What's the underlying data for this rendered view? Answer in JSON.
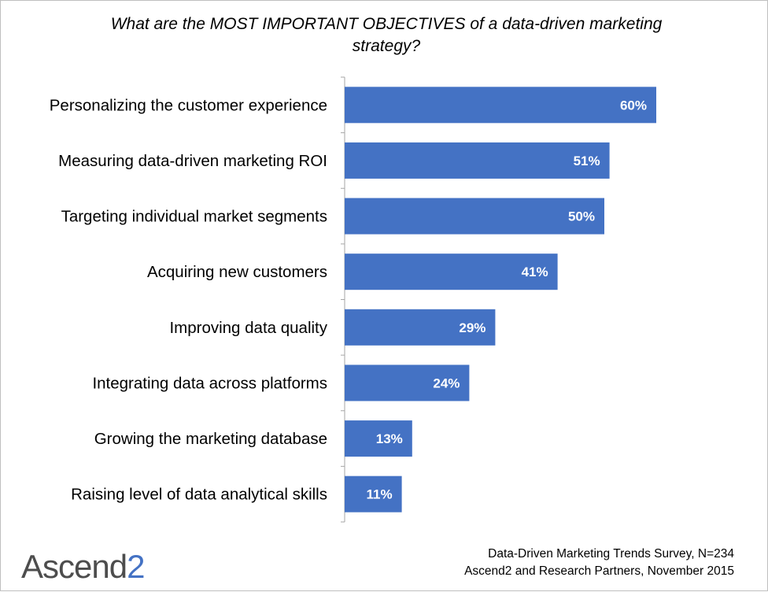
{
  "title": "What are the MOST IMPORTANT OBJECTIVES of a data-driven marketing strategy?",
  "source": {
    "line1": "Data-Driven Marketing Trends Survey, N=234",
    "line2": "Ascend2 and Research Partners, November 2015"
  },
  "logo": {
    "text": "Ascend",
    "accent": "2"
  },
  "colors": {
    "bar": "#4472C4",
    "bar_label": "#FFFFFF",
    "axis": "#A6A6A6"
  },
  "chart_data": {
    "type": "bar",
    "orientation": "horizontal",
    "categories": [
      "Personalizing the customer experience",
      "Measuring data-driven marketing ROI",
      "Targeting individual market segments",
      "Acquiring new customers",
      "Improving data quality",
      "Integrating data across platforms",
      "Growing the marketing database",
      "Raising level of data analytical skills"
    ],
    "values": [
      60,
      51,
      50,
      41,
      29,
      24,
      13,
      11
    ],
    "value_labels": [
      "60%",
      "51%",
      "50%",
      "41%",
      "29%",
      "24%",
      "13%",
      "11%"
    ],
    "unit": "%",
    "xlim": [
      0,
      60
    ],
    "grid": false,
    "legend": "none"
  }
}
